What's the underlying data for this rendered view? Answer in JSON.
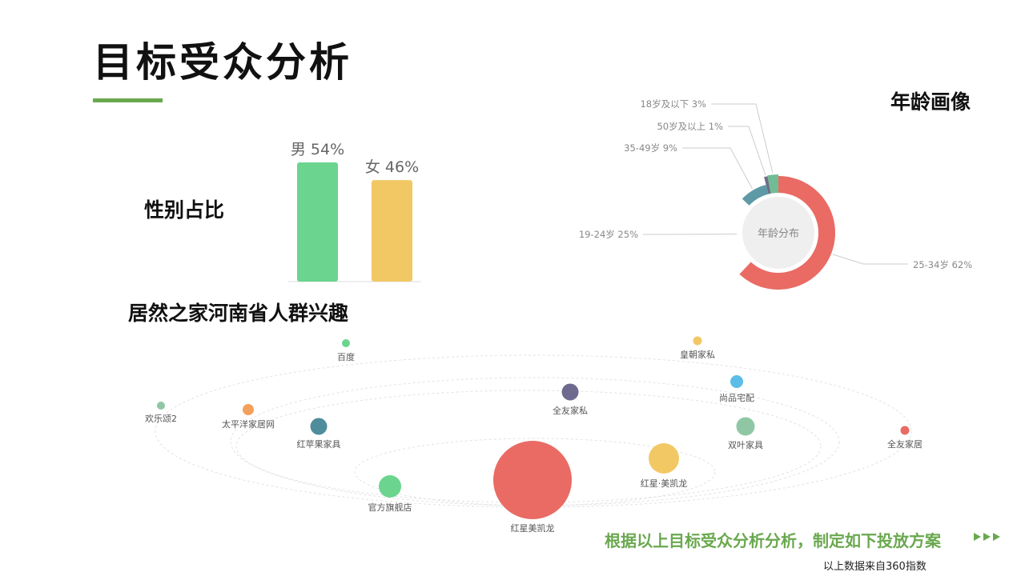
{
  "slide": {
    "title": "目标受众分析",
    "gender_label": "性别占比",
    "age_label": "年龄画像",
    "interest_label": "居然之家河南省人群兴趣",
    "conclusion": "根据以上目标受众分析分析，制定如下投放方案",
    "source_note": "以上数据来自360指数",
    "accent_color": "#6aa84f"
  },
  "chart_data": [
    {
      "type": "bar",
      "name": "gender",
      "categories": [
        "男",
        "女"
      ],
      "values": [
        54,
        46
      ],
      "data_labels": [
        "男 54%",
        "女 46%"
      ],
      "colors": [
        "#6bd48f",
        "#f2c865"
      ],
      "ylim": [
        0,
        60
      ]
    },
    {
      "type": "pie",
      "name": "age",
      "center_label": "年龄分布",
      "slices": [
        {
          "label": "25-34岁",
          "value": 62,
          "text": "25-34岁 62%",
          "color": "#e96b64"
        },
        {
          "label": "19-24岁",
          "value": 25,
          "text": "19-24岁 25%",
          "color": "#2f4554"
        },
        {
          "label": "35-49岁",
          "value": 9,
          "text": "35-49岁 9%",
          "color": "#5d9aa6"
        },
        {
          "label": "50岁及以上",
          "value": 1,
          "text": "50岁及以上 1%",
          "color": "#6e6e8a"
        },
        {
          "label": "18岁及以下",
          "value": 3,
          "text": "18岁及以下 3%",
          "color": "#71bc94"
        }
      ]
    },
    {
      "type": "scatter",
      "name": "interest",
      "nodes": [
        {
          "label": "百度",
          "color": "#6bd48f"
        },
        {
          "label": "皇朝家私",
          "color": "#f2c865"
        },
        {
          "label": "尚品宅配",
          "color": "#5bbde8"
        },
        {
          "label": "全友家私",
          "color": "#6e6a8f"
        },
        {
          "label": "欢乐颂2",
          "color": "#8fc7a5"
        },
        {
          "label": "太平洋家居网",
          "color": "#f2a05a"
        },
        {
          "label": "红苹果家具",
          "color": "#4f8d9c"
        },
        {
          "label": "双叶家具",
          "color": "#8fc7a5"
        },
        {
          "label": "全友家居",
          "color": "#e96b64"
        },
        {
          "label": "红星·美凯龙",
          "color": "#f2c865"
        },
        {
          "label": "官方旗舰店",
          "color": "#6bd48f"
        },
        {
          "label": "红星美凯龙",
          "color": "#e96b64"
        }
      ]
    }
  ]
}
